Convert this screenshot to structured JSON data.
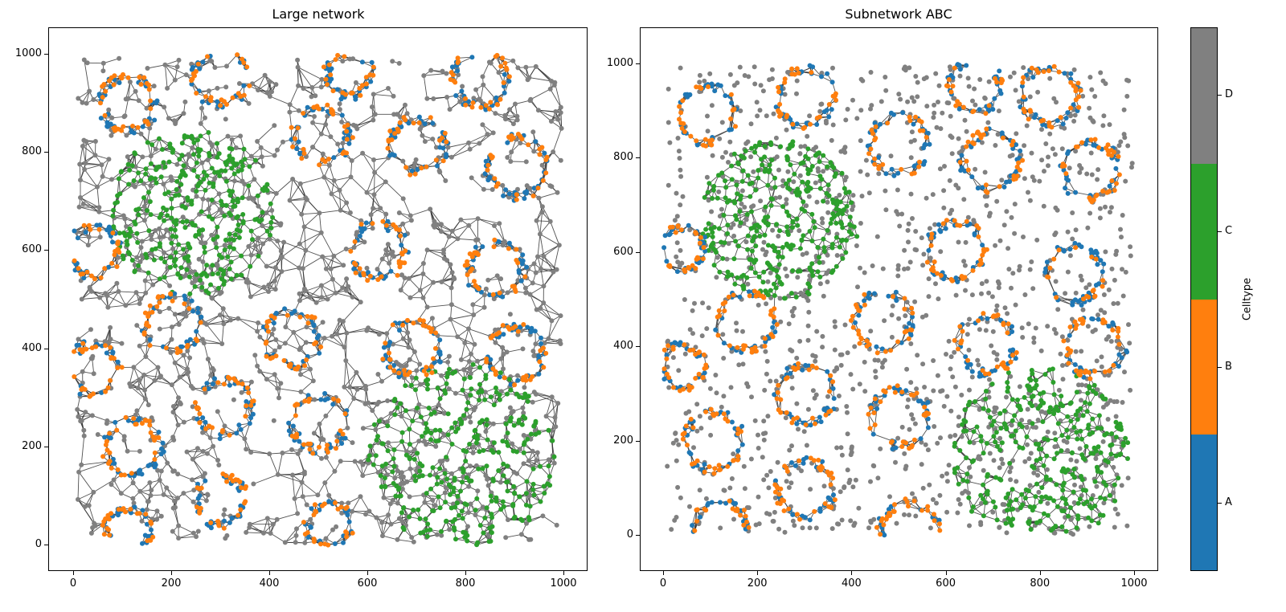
{
  "chart_data": [
    {
      "type": "scatter",
      "subtype": "network-graph",
      "title": "Large network",
      "xlabel": "",
      "ylabel": "",
      "xlim": [
        -50,
        1050
      ],
      "ylim": [
        -50,
        1050
      ],
      "xticks": [
        0,
        200,
        400,
        600,
        800,
        1000
      ],
      "yticks": [
        0,
        200,
        400,
        600,
        800,
        1000
      ],
      "grid": false,
      "edges": "Delaunay triangulation over all cells (dark gray lines)",
      "rings_AB": [
        {
          "cx": 110,
          "cy": 900,
          "r": 55
        },
        {
          "cx": 300,
          "cy": 955,
          "r": 55
        },
        {
          "cx": 560,
          "cy": 960,
          "r": 45
        },
        {
          "cx": 830,
          "cy": 950,
          "r": 55
        },
        {
          "cx": 505,
          "cy": 835,
          "r": 55
        },
        {
          "cx": 700,
          "cy": 815,
          "r": 55
        },
        {
          "cx": 905,
          "cy": 770,
          "r": 60
        },
        {
          "cx": 40,
          "cy": 600,
          "r": 50
        },
        {
          "cx": 620,
          "cy": 600,
          "r": 55
        },
        {
          "cx": 860,
          "cy": 560,
          "r": 55
        },
        {
          "cx": 200,
          "cy": 450,
          "r": 55
        },
        {
          "cx": 445,
          "cy": 420,
          "r": 55
        },
        {
          "cx": 690,
          "cy": 400,
          "r": 55
        },
        {
          "cx": 900,
          "cy": 390,
          "r": 55
        },
        {
          "cx": 40,
          "cy": 360,
          "r": 50
        },
        {
          "cx": 305,
          "cy": 280,
          "r": 55
        },
        {
          "cx": 500,
          "cy": 250,
          "r": 55
        },
        {
          "cx": 120,
          "cy": 200,
          "r": 55
        },
        {
          "cx": 300,
          "cy": 90,
          "r": 50
        },
        {
          "cx": 520,
          "cy": 40,
          "r": 45
        },
        {
          "cx": 110,
          "cy": 30,
          "r": 45
        }
      ],
      "clusters_C": [
        {
          "cx": 240,
          "cy": 680,
          "r": 170
        },
        {
          "cx": 790,
          "cy": 180,
          "r": 190
        }
      ],
      "legend_colors": {
        "A": "#1f77b4",
        "B": "#ff7f0e",
        "C": "#2ca02c",
        "D": "#808080"
      }
    },
    {
      "type": "scatter",
      "subtype": "network-graph",
      "title": "Subnetwork ABC",
      "xlabel": "",
      "ylabel": "",
      "xlim": [
        -20,
        1050
      ],
      "ylim": [
        -70,
        1080
      ],
      "xticks": [
        0,
        200,
        400,
        600,
        800,
        1000
      ],
      "yticks": [
        0,
        200,
        400,
        600,
        800,
        1000
      ],
      "grid": false,
      "edges": "Edges only among cell types A, B, C; type D shown as unconnected gray points",
      "rings_AB": [
        {
          "cx": 90,
          "cy": 895,
          "r": 60
        },
        {
          "cx": 300,
          "cy": 930,
          "r": 60
        },
        {
          "cx": 660,
          "cy": 950,
          "r": 55
        },
        {
          "cx": 820,
          "cy": 935,
          "r": 60
        },
        {
          "cx": 500,
          "cy": 830,
          "r": 60
        },
        {
          "cx": 695,
          "cy": 795,
          "r": 60
        },
        {
          "cx": 905,
          "cy": 775,
          "r": 60
        },
        {
          "cx": 40,
          "cy": 610,
          "r": 45
        },
        {
          "cx": 620,
          "cy": 605,
          "r": 60
        },
        {
          "cx": 870,
          "cy": 555,
          "r": 60
        },
        {
          "cx": 175,
          "cy": 455,
          "r": 60
        },
        {
          "cx": 465,
          "cy": 455,
          "r": 60
        },
        {
          "cx": 685,
          "cy": 405,
          "r": 60
        },
        {
          "cx": 915,
          "cy": 400,
          "r": 60
        },
        {
          "cx": 40,
          "cy": 360,
          "r": 45
        },
        {
          "cx": 300,
          "cy": 300,
          "r": 60
        },
        {
          "cx": 500,
          "cy": 250,
          "r": 60
        },
        {
          "cx": 105,
          "cy": 200,
          "r": 60
        },
        {
          "cx": 300,
          "cy": 100,
          "r": 60
        },
        {
          "cx": 120,
          "cy": 10,
          "r": 60
        },
        {
          "cx": 520,
          "cy": 10,
          "r": 60
        }
      ],
      "clusters_C": [
        {
          "cx": 245,
          "cy": 670,
          "r": 170
        },
        {
          "cx": 800,
          "cy": 170,
          "r": 190
        }
      ],
      "legend_colors": {
        "A": "#1f77b4",
        "B": "#ff7f0e",
        "C": "#2ca02c",
        "D": "#808080"
      }
    }
  ],
  "colorbar": {
    "label": "Celltype",
    "categories": [
      {
        "label": "A",
        "color": "#1f77b4"
      },
      {
        "label": "B",
        "color": "#ff7f0e"
      },
      {
        "label": "C",
        "color": "#2ca02c"
      },
      {
        "label": "D",
        "color": "#808080"
      }
    ]
  },
  "left": {
    "title": "Large network",
    "xticks": [
      "0",
      "200",
      "400",
      "600",
      "800",
      "1000"
    ],
    "yticks": [
      "0",
      "200",
      "400",
      "600",
      "800",
      "1000"
    ]
  },
  "right": {
    "title": "Subnetwork ABC",
    "xticks": [
      "0",
      "200",
      "400",
      "600",
      "800",
      "1000"
    ],
    "yticks": [
      "0",
      "200",
      "400",
      "600",
      "800",
      "1000"
    ]
  },
  "colors": {
    "edge": "#333333",
    "A": "#1f77b4",
    "B": "#ff7f0e",
    "C": "#2ca02c",
    "D": "#808080"
  }
}
